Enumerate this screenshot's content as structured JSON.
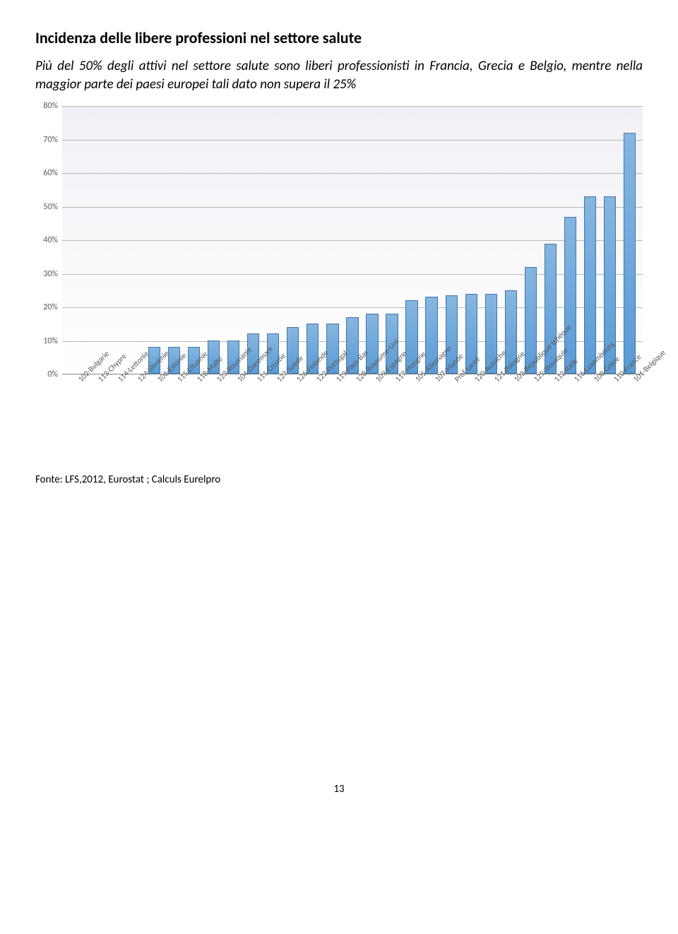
{
  "title": "Incidenza delle libere professioni nel settore salute",
  "subtitle": "Più del 50% degli attivi nel settore salute sono liberi professionisti in Francia, Grecia e Belgio, mentre nella maggior parte dei paesi europei tali dato non supera il 25%",
  "chart": {
    "type": "bar",
    "ylim": [
      0,
      80
    ],
    "ytick_step": 10,
    "ytick_suffix": "%",
    "bar_fill_top": "#86b6e0",
    "bar_fill_bottom": "#5a9bd5",
    "bar_border": "#3d75a8",
    "grid_color": "#b8b8b8",
    "bg_top": "#f1f0f6",
    "bg_bottom": "#ffffff",
    "axis_color": "#8a8a8a",
    "label_color": "#595959",
    "label_fontsize": 11,
    "categories": [
      "102-Bulgarie",
      "113-Chypre",
      "114-Lettonie",
      "124-Slovénie",
      "106-Estonie",
      "115-Lituanie",
      "118-Malte",
      "123-Roumanie",
      "104-Danemark",
      "111-Croatie",
      "127-Suède",
      "126-Finlande",
      "122-Portugal",
      "119-Pays-Bas",
      "128-Royaume-Uni",
      "109-Espagne",
      "117-Hongrie",
      "105-Allemagne",
      "107-Irlande",
      "Prof santé",
      "120-Autriche",
      "121-Pologne",
      "103-République tchèque",
      "125-Slovaquie",
      "112-Italie",
      "116-Luxembourg",
      "108-Grèce",
      "110-France",
      "101-Belgique"
    ],
    "values": [
      0,
      0,
      0,
      0,
      8,
      8,
      8,
      10,
      10,
      12,
      12,
      14,
      15,
      15,
      17,
      18,
      18,
      22,
      23,
      23.5,
      24,
      24,
      25,
      32,
      39,
      47,
      53,
      53,
      72
    ]
  },
  "source": "Fonte: LFS,2012, Eurostat ; Calculs Eurelpro",
  "page_number": "13"
}
